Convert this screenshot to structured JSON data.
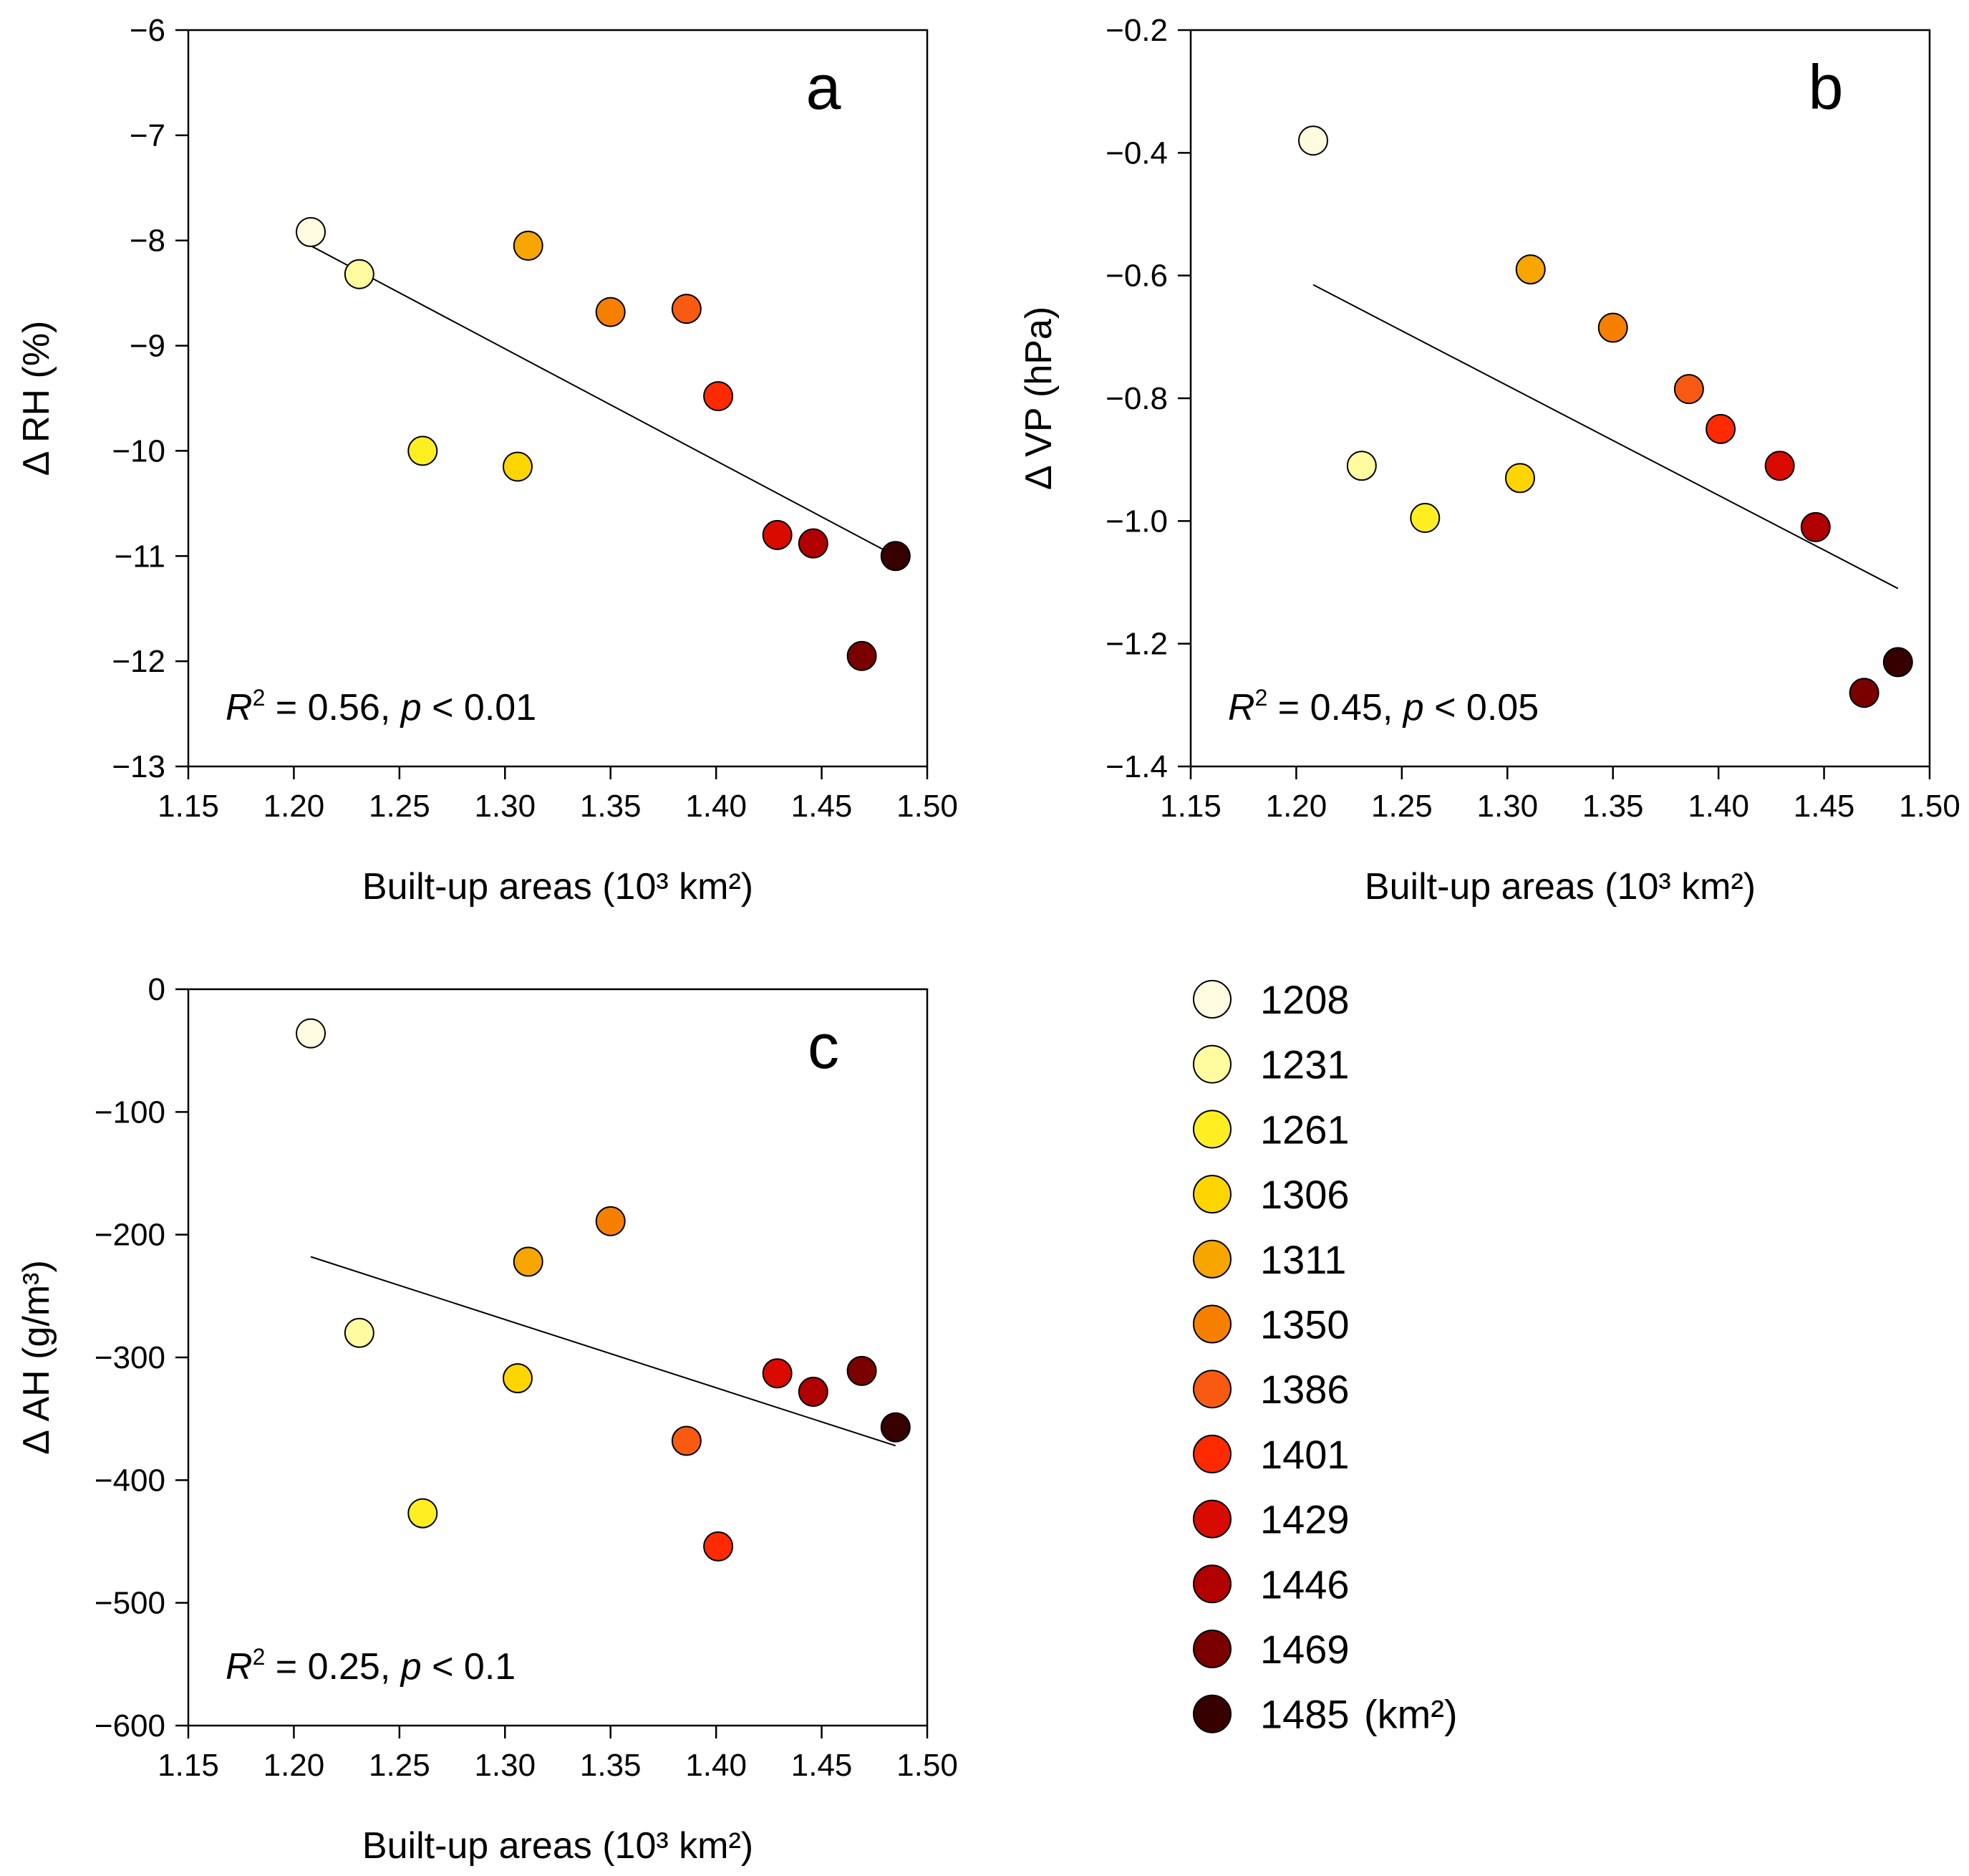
{
  "colors": {
    "1208": "#fffbe0",
    "1231": "#fffb9e",
    "1261": "#ffee22",
    "1306": "#ffd500",
    "1311": "#f7a600",
    "1350": "#f77f00",
    "1386": "#f75a10",
    "1401": "#ff2a00",
    "1429": "#d90b00",
    "1446": "#b00000",
    "1469": "#7a0000",
    "1485": "#360000"
  },
  "legend": {
    "items": [
      "1208",
      "1231",
      "1261",
      "1306",
      "1311",
      "1350",
      "1386",
      "1401",
      "1429",
      "1446",
      "1469",
      "1485"
    ],
    "unit": "(km²)"
  },
  "chart_data": [
    {
      "type": "scatter",
      "panel": "a",
      "xlabel": "Built-up areas",
      "xlabel_unit": "(10³ km²)",
      "ylabel": "Δ RH (%)",
      "xlim": [
        1.15,
        1.5
      ],
      "ylim": [
        -13,
        -6
      ],
      "xticks": [
        "1.15",
        "1.20",
        "1.25",
        "1.30",
        "1.35",
        "1.40",
        "1.45",
        "1.50"
      ],
      "yticks": [
        "−6",
        "−7",
        "−8",
        "−9",
        "−10",
        "−11",
        "−12",
        "−13"
      ],
      "stat_r": "R",
      "stat_text": " = 0.56, ",
      "stat_p": "p",
      "stat_end": " < 0.01",
      "fit_line": {
        "x": [
          1.208,
          1.485
        ],
        "y": [
          -8.05,
          -11.0
        ]
      },
      "points": [
        {
          "key": "1208",
          "x": 1.208,
          "y": -7.92
        },
        {
          "key": "1231",
          "x": 1.231,
          "y": -8.32
        },
        {
          "key": "1261",
          "x": 1.261,
          "y": -10.0
        },
        {
          "key": "1306",
          "x": 1.306,
          "y": -10.15
        },
        {
          "key": "1311",
          "x": 1.311,
          "y": -8.05
        },
        {
          "key": "1350",
          "x": 1.35,
          "y": -8.68
        },
        {
          "key": "1386",
          "x": 1.386,
          "y": -8.65
        },
        {
          "key": "1401",
          "x": 1.401,
          "y": -9.48
        },
        {
          "key": "1429",
          "x": 1.429,
          "y": -10.8
        },
        {
          "key": "1446",
          "x": 1.446,
          "y": -10.88
        },
        {
          "key": "1469",
          "x": 1.469,
          "y": -11.95
        },
        {
          "key": "1485",
          "x": 1.485,
          "y": -11.0
        }
      ]
    },
    {
      "type": "scatter",
      "panel": "b",
      "xlabel": "Built-up areas",
      "xlabel_unit": "(10³ km²)",
      "ylabel": "Δ VP (hPa)",
      "xlim": [
        1.15,
        1.5
      ],
      "ylim": [
        -1.4,
        -0.2
      ],
      "xticks": [
        "1.15",
        "1.20",
        "1.25",
        "1.30",
        "1.35",
        "1.40",
        "1.45",
        "1.50"
      ],
      "yticks": [
        "−0.2",
        "−0.4",
        "−0.6",
        "−0.8",
        "−1.0",
        "−1.2",
        "−1.4"
      ],
      "stat_r": "R",
      "stat_text": " = 0.45, ",
      "stat_p": "p",
      "stat_end": " < 0.05",
      "fit_line": {
        "x": [
          1.208,
          1.485
        ],
        "y": [
          -0.615,
          -1.11
        ]
      },
      "points": [
        {
          "key": "1208",
          "x": 1.208,
          "y": -0.38
        },
        {
          "key": "1231",
          "x": 1.231,
          "y": -0.91
        },
        {
          "key": "1261",
          "x": 1.261,
          "y": -0.995
        },
        {
          "key": "1306",
          "x": 1.306,
          "y": -0.93
        },
        {
          "key": "1311",
          "x": 1.311,
          "y": -0.59
        },
        {
          "key": "1350",
          "x": 1.35,
          "y": -0.685
        },
        {
          "key": "1386",
          "x": 1.386,
          "y": -0.785
        },
        {
          "key": "1401",
          "x": 1.401,
          "y": -0.85
        },
        {
          "key": "1429",
          "x": 1.429,
          "y": -0.91
        },
        {
          "key": "1446",
          "x": 1.446,
          "y": -1.01
        },
        {
          "key": "1469",
          "x": 1.469,
          "y": -1.28
        },
        {
          "key": "1485",
          "x": 1.485,
          "y": -1.23
        }
      ]
    },
    {
      "type": "scatter",
      "panel": "c",
      "xlabel": "Built-up areas",
      "xlabel_unit": "(10³ km²)",
      "ylabel": "Δ AH (g/m³)",
      "xlim": [
        1.15,
        1.5
      ],
      "ylim": [
        -600,
        0
      ],
      "xticks": [
        "1.15",
        "1.20",
        "1.25",
        "1.30",
        "1.35",
        "1.40",
        "1.45",
        "1.50"
      ],
      "yticks": [
        "0",
        "−100",
        "−200",
        "−300",
        "−400",
        "−500",
        "−600"
      ],
      "stat_r": "R",
      "stat_text": " = 0.25, ",
      "stat_p": "p",
      "stat_end": " < 0.1",
      "fit_line": {
        "x": [
          1.208,
          1.485
        ],
        "y": [
          -218,
          -372
        ]
      },
      "points": [
        {
          "key": "1208",
          "x": 1.208,
          "y": -36
        },
        {
          "key": "1231",
          "x": 1.231,
          "y": -280
        },
        {
          "key": "1261",
          "x": 1.261,
          "y": -427
        },
        {
          "key": "1306",
          "x": 1.306,
          "y": -317
        },
        {
          "key": "1311",
          "x": 1.311,
          "y": -222
        },
        {
          "key": "1350",
          "x": 1.35,
          "y": -189
        },
        {
          "key": "1386",
          "x": 1.386,
          "y": -368
        },
        {
          "key": "1401",
          "x": 1.401,
          "y": -454
        },
        {
          "key": "1429",
          "x": 1.429,
          "y": -313
        },
        {
          "key": "1446",
          "x": 1.446,
          "y": -328
        },
        {
          "key": "1469",
          "x": 1.469,
          "y": -311
        },
        {
          "key": "1485",
          "x": 1.485,
          "y": -357
        }
      ]
    }
  ]
}
